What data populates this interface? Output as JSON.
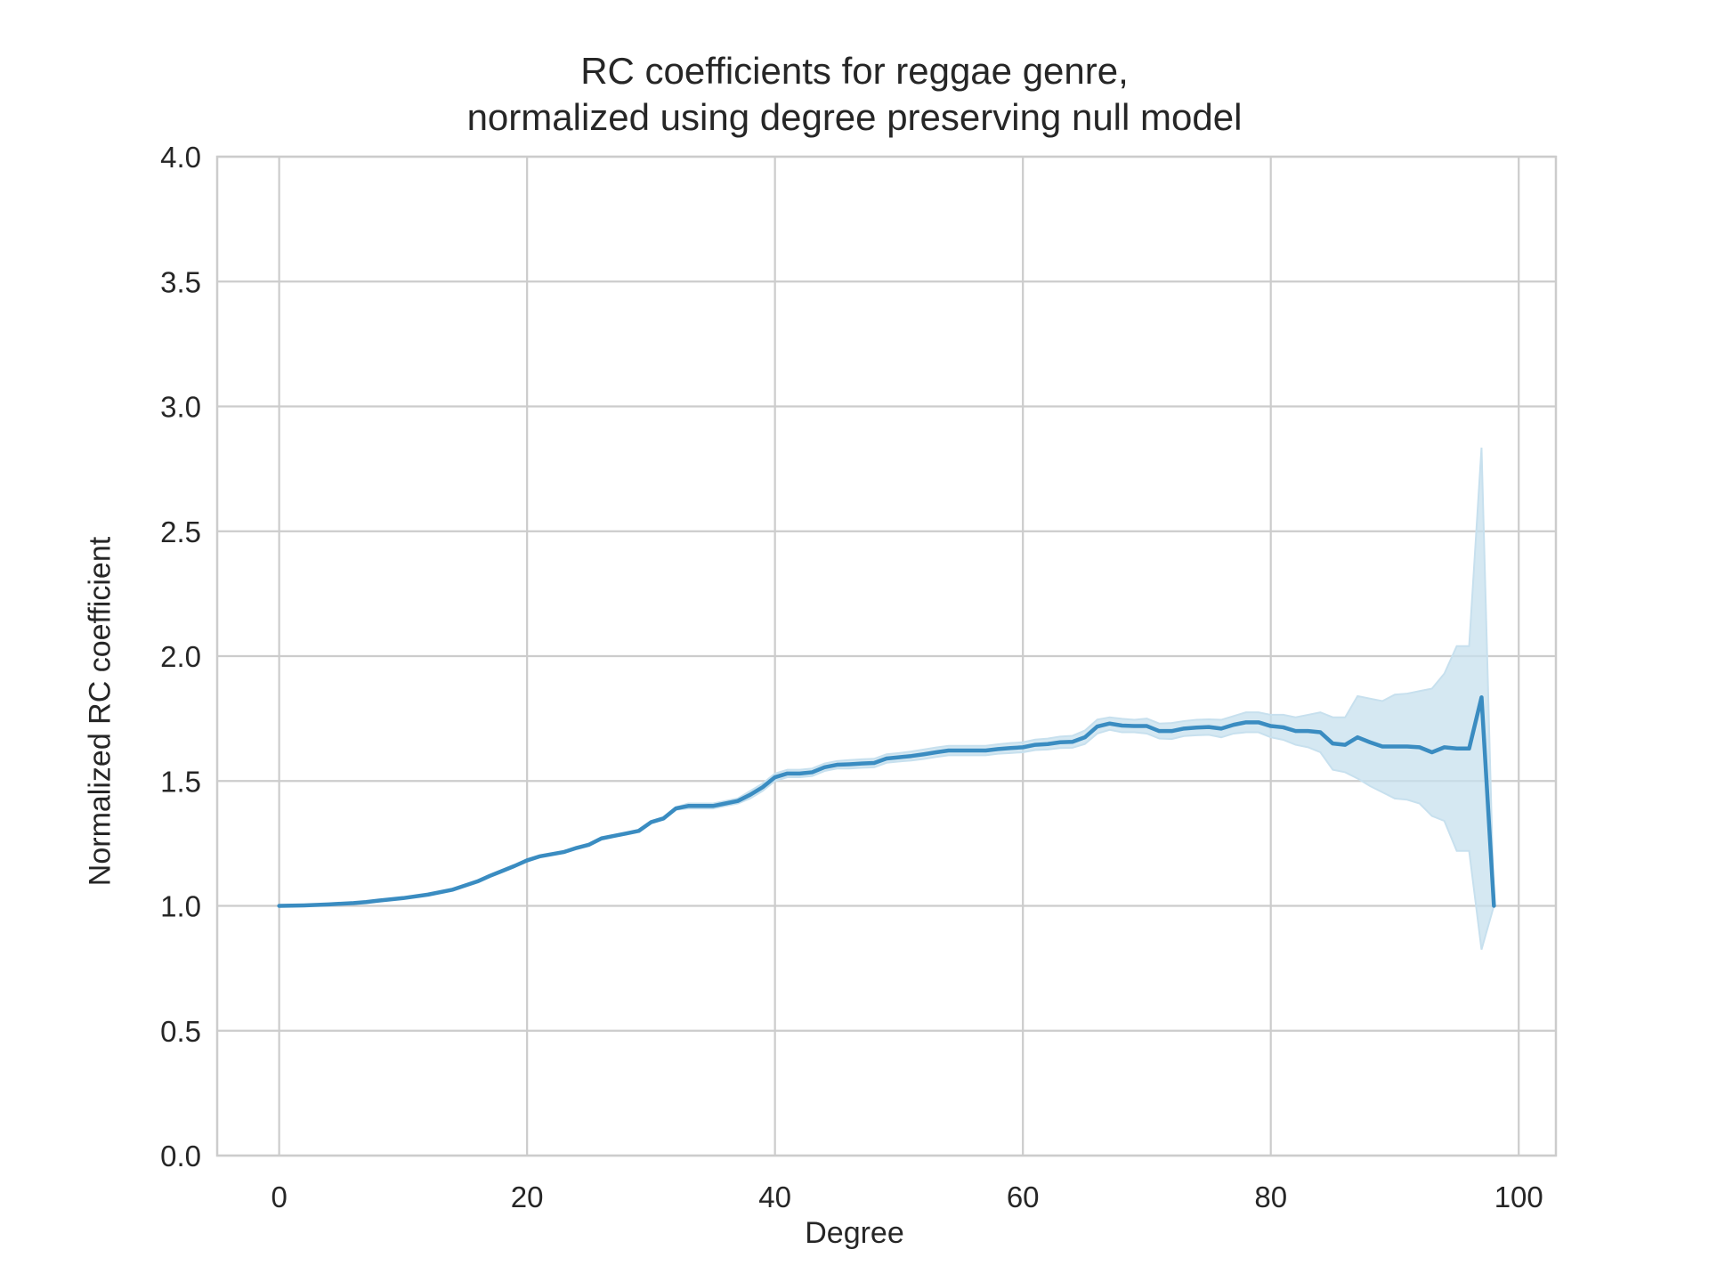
{
  "chart_data": {
    "type": "line",
    "title_lines": [
      "RC coefficients for reggae genre,",
      "normalized using degree preserving null model"
    ],
    "xlabel": "Degree",
    "ylabel": "Normalized RC coefficient",
    "xlim": [
      -5,
      103
    ],
    "ylim": [
      0.0,
      4.0
    ],
    "xticks": [
      0,
      20,
      40,
      60,
      80,
      100
    ],
    "xtick_labels": [
      "0",
      "20",
      "40",
      "60",
      "80",
      "100"
    ],
    "yticks": [
      0.0,
      0.5,
      1.0,
      1.5,
      2.0,
      2.5,
      3.0,
      3.5,
      4.0
    ],
    "ytick_labels": [
      "0.0",
      "0.5",
      "1.0",
      "1.5",
      "2.0",
      "2.5",
      "3.0",
      "3.5",
      "4.0"
    ],
    "grid": true,
    "legend": "none",
    "colors": {
      "line": "#3a8cc1",
      "band": "#c7e0ee",
      "grid": "#cccccc",
      "text": "#262626"
    },
    "series": [
      {
        "x": [
          0,
          2,
          4,
          6,
          7,
          8,
          10,
          12,
          14,
          16,
          17,
          18,
          19,
          20,
          21,
          23,
          24,
          25,
          26,
          27,
          28,
          29,
          30,
          31,
          32,
          33,
          34,
          35,
          36,
          37,
          38,
          39,
          40,
          41,
          42,
          43,
          44,
          45,
          46,
          47,
          48,
          49,
          50,
          51,
          52,
          53,
          54,
          55,
          56,
          57,
          58,
          59,
          60,
          61,
          62,
          63,
          64,
          65,
          66,
          67,
          68,
          69,
          70,
          71,
          72,
          73,
          74,
          75,
          76,
          77,
          78,
          79,
          80,
          81,
          82,
          83,
          84,
          85,
          86,
          87,
          88,
          89,
          90,
          91,
          92,
          93,
          94,
          95,
          96,
          97,
          98
        ],
        "y": [
          1.0,
          1.002,
          1.006,
          1.011,
          1.015,
          1.021,
          1.031,
          1.045,
          1.065,
          1.098,
          1.12,
          1.14,
          1.16,
          1.182,
          1.198,
          1.216,
          1.232,
          1.245,
          1.27,
          1.28,
          1.29,
          1.3,
          1.335,
          1.35,
          1.39,
          1.4,
          1.4,
          1.4,
          1.41,
          1.42,
          1.445,
          1.475,
          1.515,
          1.53,
          1.53,
          1.535,
          1.555,
          1.565,
          1.567,
          1.57,
          1.572,
          1.59,
          1.595,
          1.6,
          1.607,
          1.615,
          1.622,
          1.622,
          1.622,
          1.622,
          1.628,
          1.632,
          1.635,
          1.645,
          1.648,
          1.655,
          1.657,
          1.675,
          1.718,
          1.73,
          1.722,
          1.72,
          1.72,
          1.7,
          1.7,
          1.71,
          1.714,
          1.716,
          1.71,
          1.725,
          1.735,
          1.735,
          1.72,
          1.715,
          1.7,
          1.7,
          1.695,
          1.65,
          1.645,
          1.675,
          1.655,
          1.638,
          1.638,
          1.638,
          1.635,
          1.615,
          1.635,
          1.63,
          1.63,
          1.835,
          1.0
        ],
        "ci_lower": [
          1.0,
          1.002,
          1.006,
          1.011,
          1.015,
          1.021,
          1.031,
          1.045,
          1.065,
          1.098,
          1.12,
          1.14,
          1.16,
          1.182,
          1.198,
          1.216,
          1.232,
          1.245,
          1.27,
          1.28,
          1.29,
          1.3,
          1.33,
          1.345,
          1.385,
          1.39,
          1.39,
          1.39,
          1.4,
          1.41,
          1.43,
          1.46,
          1.5,
          1.515,
          1.515,
          1.52,
          1.54,
          1.55,
          1.55,
          1.553,
          1.555,
          1.573,
          1.578,
          1.582,
          1.588,
          1.596,
          1.603,
          1.603,
          1.603,
          1.603,
          1.609,
          1.612,
          1.615,
          1.624,
          1.626,
          1.632,
          1.633,
          1.648,
          1.69,
          1.705,
          1.695,
          1.695,
          1.69,
          1.67,
          1.668,
          1.68,
          1.683,
          1.685,
          1.675,
          1.69,
          1.695,
          1.695,
          1.675,
          1.665,
          1.645,
          1.635,
          1.615,
          1.545,
          1.535,
          1.51,
          1.48,
          1.455,
          1.43,
          1.425,
          1.41,
          1.36,
          1.34,
          1.22,
          1.22,
          0.825,
          1.0
        ],
        "ci_upper": [
          1.0,
          1.002,
          1.006,
          1.011,
          1.015,
          1.021,
          1.031,
          1.045,
          1.065,
          1.098,
          1.12,
          1.14,
          1.16,
          1.182,
          1.198,
          1.216,
          1.232,
          1.245,
          1.27,
          1.28,
          1.29,
          1.3,
          1.34,
          1.355,
          1.395,
          1.41,
          1.41,
          1.41,
          1.42,
          1.43,
          1.46,
          1.49,
          1.53,
          1.545,
          1.545,
          1.55,
          1.57,
          1.58,
          1.584,
          1.587,
          1.589,
          1.607,
          1.612,
          1.618,
          1.626,
          1.634,
          1.641,
          1.641,
          1.641,
          1.641,
          1.647,
          1.652,
          1.655,
          1.666,
          1.67,
          1.678,
          1.681,
          1.702,
          1.746,
          1.755,
          1.749,
          1.745,
          1.75,
          1.73,
          1.732,
          1.74,
          1.745,
          1.747,
          1.745,
          1.76,
          1.775,
          1.775,
          1.765,
          1.765,
          1.755,
          1.765,
          1.775,
          1.755,
          1.755,
          1.84,
          1.83,
          1.82,
          1.846,
          1.85,
          1.86,
          1.87,
          1.93,
          2.04,
          2.04,
          2.835,
          1.0
        ]
      }
    ]
  }
}
